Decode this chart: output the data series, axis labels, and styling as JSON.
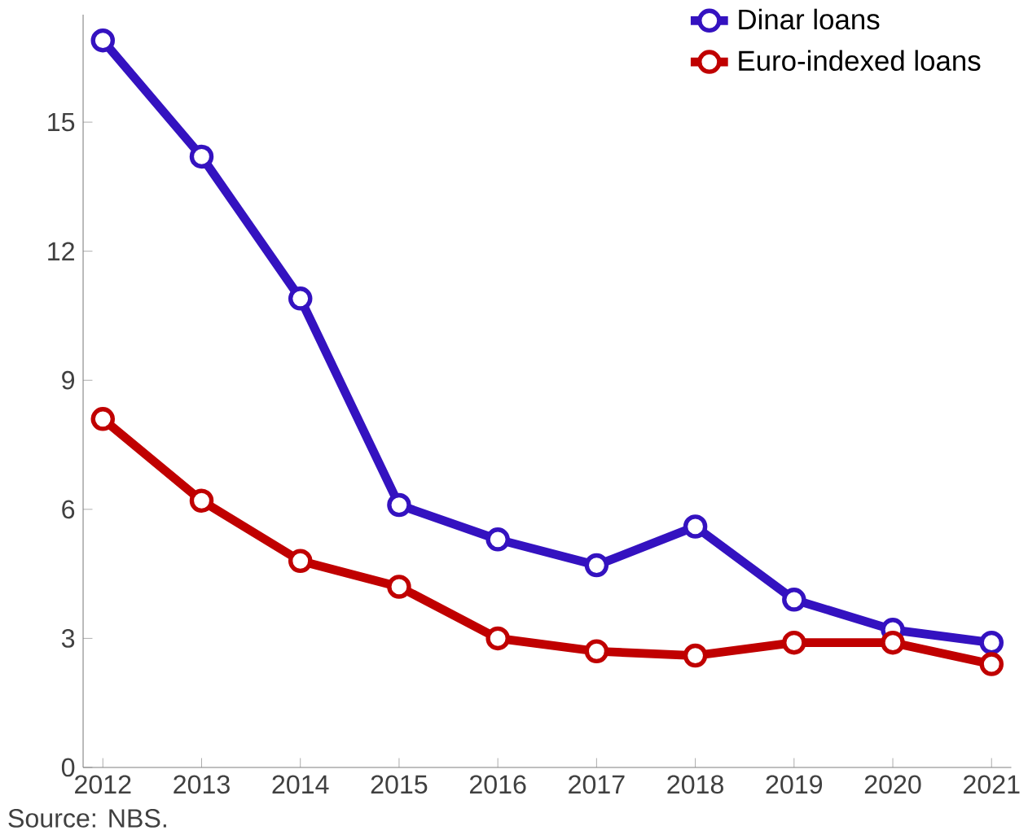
{
  "chart_data": {
    "type": "line",
    "categories": [
      "2012",
      "2013",
      "2014",
      "2015",
      "2016",
      "2017",
      "2018",
      "2019",
      "2020",
      "2021"
    ],
    "series": [
      {
        "name": "Dinar loans",
        "color": "#3412c0",
        "values": [
          16.9,
          14.2,
          10.9,
          6.1,
          5.3,
          4.7,
          5.6,
          3.9,
          3.2,
          2.9
        ]
      },
      {
        "name": "Euro-indexed loans",
        "color": "#c00000",
        "values": [
          8.1,
          6.2,
          4.8,
          4.2,
          3.0,
          2.7,
          2.6,
          2.9,
          2.9,
          2.4
        ]
      }
    ],
    "ylim": [
      0,
      17.5
    ],
    "yticks": [
      0,
      3,
      6,
      9,
      12,
      15
    ],
    "legend": "top right",
    "marker": "circle",
    "line_style": "solid",
    "grid": false,
    "annotations": [
      "Source: NBS."
    ]
  }
}
